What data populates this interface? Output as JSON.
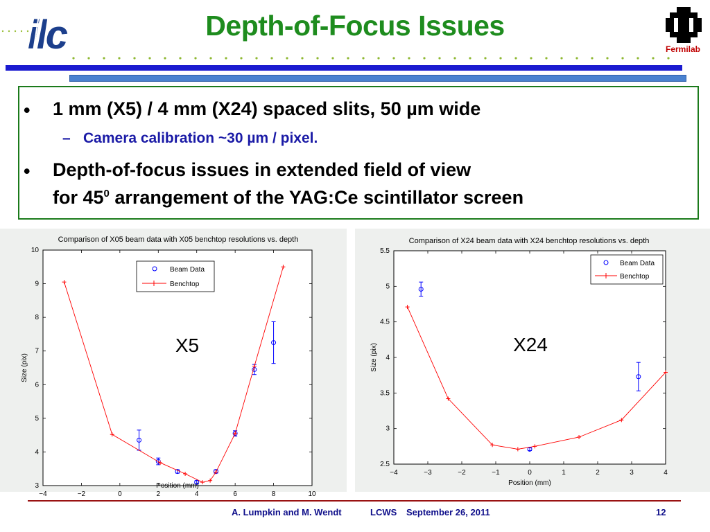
{
  "header": {
    "title": "Depth-of-Focus Issues",
    "logo_left_text": "ilc",
    "logo_right_text": "Fermilab"
  },
  "bullets": {
    "b1": "1 mm (X5) / 4 mm (X24) spaced slits, 50 µm wide",
    "b1_sub": "Camera calibration ~30 µm / pixel.",
    "b2_line1": "Depth-of-focus issues in extended field of view",
    "b2_line2_pre": "for 45",
    "b2_line2_sup": "0",
    "b2_line2_post": " arrangement of the YAG:Ce scintillator screen",
    "bullet_char": "•",
    "dash_char": "–"
  },
  "chart_data": [
    {
      "type": "scatter",
      "title": "Comparison of X05 beam data with X05 benchtop resolutions vs. depth",
      "xlabel": "Position (mm)",
      "ylabel": "Size (pix)",
      "xlim": [
        -4,
        10
      ],
      "ylim": [
        3,
        10
      ],
      "xticks": [
        -4,
        -2,
        0,
        2,
        4,
        6,
        8,
        10
      ],
      "yticks": [
        3,
        4,
        5,
        6,
        7,
        8,
        9,
        10
      ],
      "annotation": "X5",
      "legend": {
        "placement": "top-right",
        "entries": [
          "Beam Data",
          "Benchtop"
        ]
      },
      "series": [
        {
          "name": "Beam Data",
          "marker": "circle-errorbar",
          "color": "#0000ff",
          "x": [
            1,
            2,
            3,
            4,
            5,
            6,
            7,
            8
          ],
          "y": [
            4.35,
            3.72,
            3.42,
            3.1,
            3.42,
            4.55,
            6.45,
            7.25
          ],
          "err": [
            0.3,
            0.1,
            0.05,
            0.05,
            0.05,
            0.08,
            0.15,
            0.62
          ]
        },
        {
          "name": "Benchtop",
          "marker": "plus-line",
          "color": "#ff0000",
          "x": [
            -2.9,
            -0.4,
            2.1,
            3.4,
            4.3,
            4.7,
            5.0,
            6.0,
            7.0,
            8.5
          ],
          "y": [
            9.05,
            4.52,
            3.68,
            3.35,
            3.1,
            3.15,
            3.4,
            4.55,
            6.55,
            9.5
          ]
        }
      ]
    },
    {
      "type": "scatter",
      "title": "Comparison of X24 beam data with X24 benchtop resolutions vs. depth",
      "xlabel": "Position (mm)",
      "ylabel": "Size (pix)",
      "xlim": [
        -4,
        4
      ],
      "ylim": [
        2.5,
        5.5
      ],
      "xticks": [
        -4,
        -3,
        -2,
        -1,
        0,
        1,
        2,
        3,
        4
      ],
      "yticks": [
        2.5,
        3,
        3.5,
        4,
        4.5,
        5,
        5.5
      ],
      "annotation": "X24",
      "legend": {
        "placement": "top-right",
        "entries": [
          "Beam Data",
          "Benchtop"
        ]
      },
      "series": [
        {
          "name": "Beam Data",
          "marker": "circle-errorbar",
          "color": "#0000ff",
          "x": [
            -3.2,
            0,
            3.2
          ],
          "y": [
            4.96,
            2.71,
            3.73
          ],
          "err": [
            0.1,
            0.02,
            0.2
          ]
        },
        {
          "name": "Benchtop",
          "marker": "plus-line",
          "color": "#ff0000",
          "x": [
            -3.6,
            -2.4,
            -1.1,
            -0.35,
            0.15,
            1.45,
            2.7,
            4.0
          ],
          "y": [
            4.71,
            3.42,
            2.77,
            2.71,
            2.75,
            2.88,
            3.12,
            3.79
          ]
        }
      ]
    }
  ],
  "footer": {
    "authors": "A. Lumpkin and M. Wendt",
    "event": "LCWS",
    "date": "September 26, 2011",
    "page": "12"
  }
}
